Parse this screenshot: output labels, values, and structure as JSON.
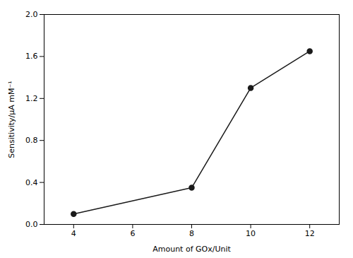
{
  "chart_data": {
    "type": "line",
    "x": [
      4,
      8,
      10,
      12
    ],
    "values": [
      0.1,
      0.35,
      1.3,
      1.65
    ],
    "xlabel": "Amount of GOx/Unit",
    "ylabel": "Sensitivity/μA mM⁻¹",
    "xlim": [
      3,
      13
    ],
    "ylim": [
      0.0,
      2.0
    ],
    "xticks": [
      4,
      6,
      8,
      10,
      12
    ],
    "yticks": [
      {
        "value": 0.0,
        "label": "0.0"
      },
      0.4,
      0.8,
      1.2,
      1.6,
      {
        "value": 2.0,
        "label": "2.0"
      }
    ],
    "color": "#1a1a1a",
    "marker": "circle",
    "grid": false
  }
}
